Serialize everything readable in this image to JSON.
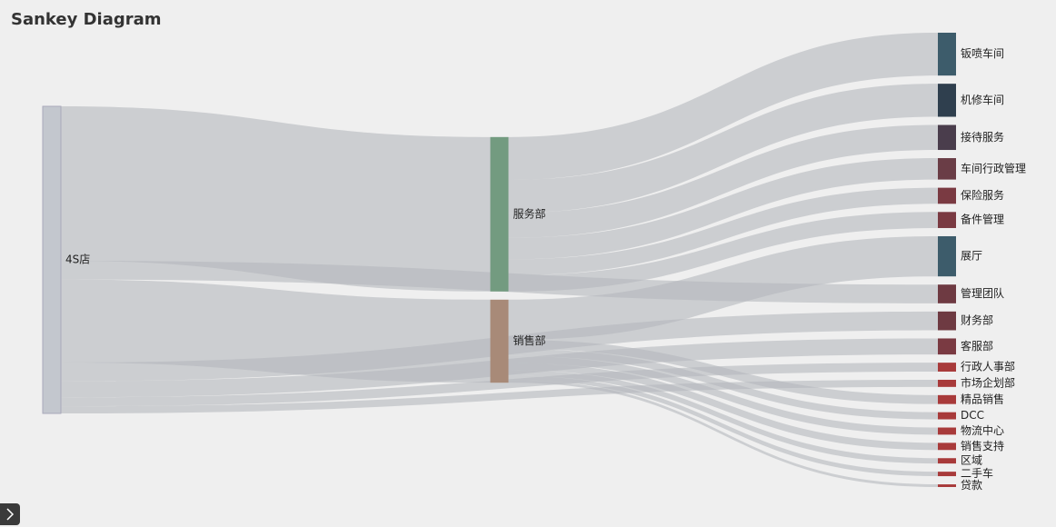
{
  "chart_data": {
    "type": "sankey",
    "title": "Sankey Diagram",
    "nodes": [
      {
        "name": "4S店",
        "color": "#c3c7ce"
      },
      {
        "name": "服务部",
        "color": "#739b80"
      },
      {
        "name": "销售部",
        "color": "#a88a78"
      },
      {
        "name": "钣喷车间",
        "color": "#3d5c6b"
      },
      {
        "name": "机修车间",
        "color": "#2f3f4e"
      },
      {
        "name": "接待服务",
        "color": "#4a3d4c"
      },
      {
        "name": "车间行政管理",
        "color": "#6a3d46"
      },
      {
        "name": "保险服务",
        "color": "#7a3a42"
      },
      {
        "name": "备件管理",
        "color": "#7a3a42"
      },
      {
        "name": "展厅",
        "color": "#3d5c6b"
      },
      {
        "name": "管理团队",
        "color": "#6e3a42"
      },
      {
        "name": "财务部",
        "color": "#6e3a42"
      },
      {
        "name": "客服部",
        "color": "#7a3a42"
      },
      {
        "name": "行政人事部",
        "color": "#a83a3a"
      },
      {
        "name": "市场企划部",
        "color": "#a83a3a"
      },
      {
        "name": "精品销售",
        "color": "#a83a3a"
      },
      {
        "name": "DCC",
        "color": "#a83a3a"
      },
      {
        "name": "物流中心",
        "color": "#a83a3a"
      },
      {
        "name": "销售支持",
        "color": "#a83a3a"
      },
      {
        "name": "区域",
        "color": "#a83a3a"
      },
      {
        "name": "二手车",
        "color": "#a83a3a"
      },
      {
        "name": "贷款",
        "color": "#a83a3a"
      }
    ],
    "links": [
      {
        "source": 0,
        "target": 1,
        "value": 173
      },
      {
        "source": 0,
        "target": 2,
        "value": 93
      },
      {
        "source": 0,
        "target": 10,
        "value": 21
      },
      {
        "source": 0,
        "target": 11,
        "value": 21
      },
      {
        "source": 0,
        "target": 12,
        "value": 18
      },
      {
        "source": 0,
        "target": 13,
        "value": 10
      },
      {
        "source": 0,
        "target": 14,
        "value": 8
      },
      {
        "source": 1,
        "target": 3,
        "value": 48
      },
      {
        "source": 1,
        "target": 4,
        "value": 37
      },
      {
        "source": 1,
        "target": 5,
        "value": 28
      },
      {
        "source": 1,
        "target": 6,
        "value": 24
      },
      {
        "source": 1,
        "target": 7,
        "value": 18
      },
      {
        "source": 1,
        "target": 8,
        "value": 18
      },
      {
        "source": 2,
        "target": 9,
        "value": 45
      },
      {
        "source": 2,
        "target": 15,
        "value": 10
      },
      {
        "source": 2,
        "target": 16,
        "value": 8
      },
      {
        "source": 2,
        "target": 17,
        "value": 8
      },
      {
        "source": 2,
        "target": 18,
        "value": 8
      },
      {
        "source": 2,
        "target": 19,
        "value": 6
      },
      {
        "source": 2,
        "target": 20,
        "value": 5
      },
      {
        "source": 2,
        "target": 21,
        "value": 3
      }
    ],
    "link_color": "#b4b8bd"
  }
}
